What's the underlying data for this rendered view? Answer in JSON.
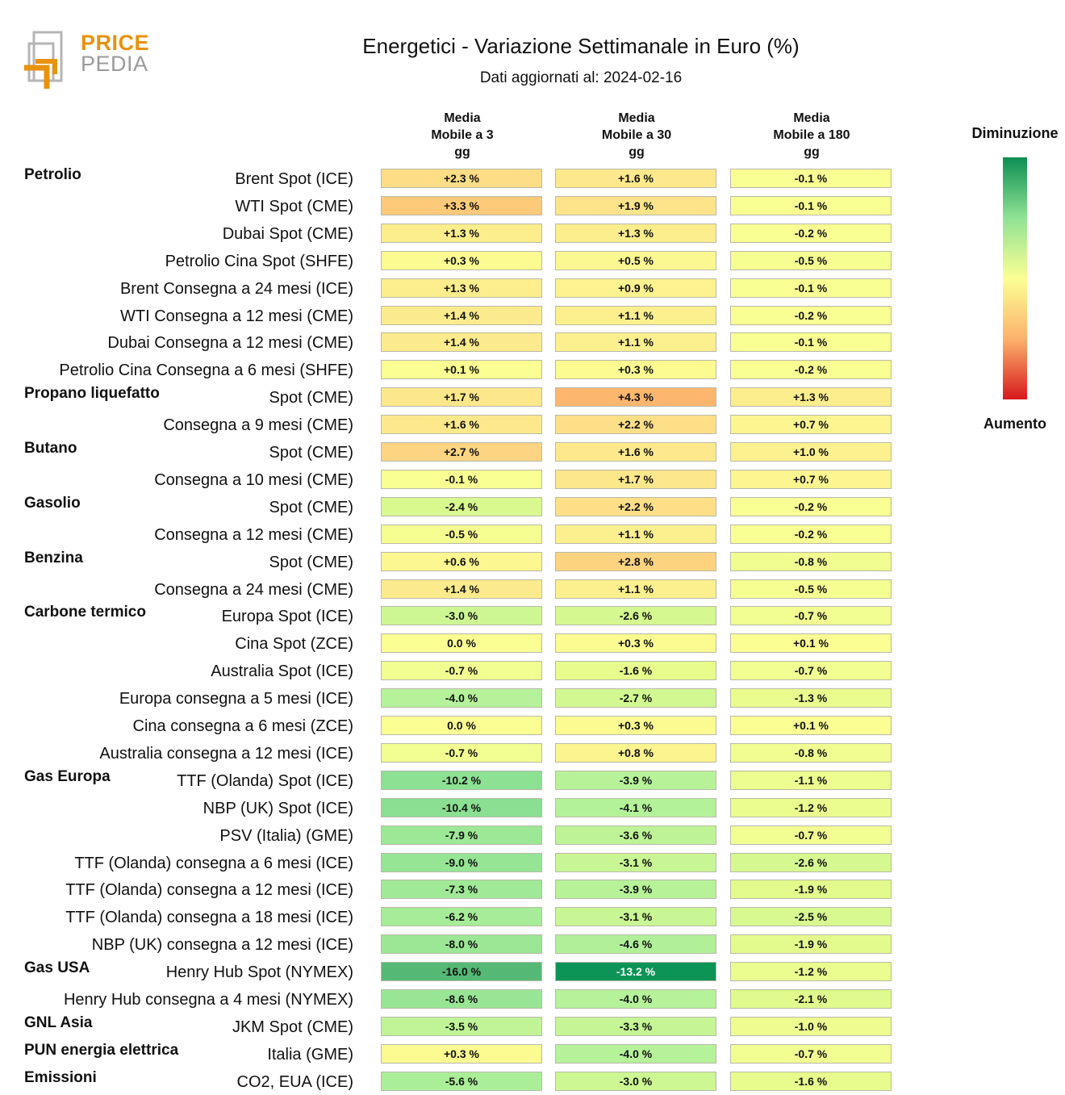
{
  "logo": {
    "line1": "PRICE",
    "line2": "PEDIA"
  },
  "title": "Energetici - Variazione Settimanale in Euro (%)",
  "subtitle": "Dati aggiornati al: 2024-02-16",
  "columns": [
    {
      "lines": [
        "Media",
        "Mobile a 3",
        "gg"
      ]
    },
    {
      "lines": [
        "Media",
        "Mobile a 30",
        "gg"
      ]
    },
    {
      "lines": [
        "Media",
        "Mobile a 180",
        "gg"
      ]
    }
  ],
  "legend": {
    "top": "Diminuzione",
    "bottom": "Aumento",
    "colors": [
      "#0c8f54",
      "#8fe294",
      "#fbff93",
      "#fdb26c",
      "#d7191c"
    ]
  },
  "chart_data": {
    "type": "table",
    "value_suffix": " %",
    "groups": [
      {
        "name": "Petrolio",
        "rows": [
          {
            "label": "Brent Spot (ICE)",
            "values": [
              2.3,
              1.6,
              -0.1
            ]
          },
          {
            "label": "WTI Spot (CME)",
            "values": [
              3.3,
              1.9,
              -0.1
            ]
          },
          {
            "label": "Dubai Spot (CME)",
            "values": [
              1.3,
              1.3,
              -0.2
            ]
          },
          {
            "label": "Petrolio Cina Spot (SHFE)",
            "values": [
              0.3,
              0.5,
              -0.5
            ]
          },
          {
            "label": "Brent Consegna a 24 mesi (ICE)",
            "values": [
              1.3,
              0.9,
              -0.1
            ]
          },
          {
            "label": "WTI Consegna a 12 mesi (CME)",
            "values": [
              1.4,
              1.1,
              -0.2
            ]
          },
          {
            "label": "Dubai Consegna a 12 mesi (CME)",
            "values": [
              1.4,
              1.1,
              -0.1
            ]
          },
          {
            "label": "Petrolio Cina Consegna a 6 mesi (SHFE)",
            "values": [
              0.1,
              0.3,
              -0.2
            ]
          }
        ]
      },
      {
        "name": "Propano liquefatto",
        "rows": [
          {
            "label": "Spot (CME)",
            "values": [
              1.7,
              4.3,
              1.3
            ]
          },
          {
            "label": "Consegna a 9 mesi (CME)",
            "values": [
              1.6,
              2.2,
              0.7
            ]
          }
        ]
      },
      {
        "name": "Butano",
        "rows": [
          {
            "label": "Spot (CME)",
            "values": [
              2.7,
              1.6,
              1.0
            ]
          },
          {
            "label": "Consegna a 10 mesi (CME)",
            "values": [
              -0.1,
              1.7,
              0.7
            ]
          }
        ]
      },
      {
        "name": "Gasolio",
        "rows": [
          {
            "label": "Spot (CME)",
            "values": [
              -2.4,
              2.2,
              -0.2
            ]
          },
          {
            "label": "Consegna a 12 mesi (CME)",
            "values": [
              -0.5,
              1.1,
              -0.2
            ]
          }
        ]
      },
      {
        "name": "Benzina",
        "rows": [
          {
            "label": "Spot (CME)",
            "values": [
              0.6,
              2.8,
              -0.8
            ]
          },
          {
            "label": "Consegna a 24 mesi (CME)",
            "values": [
              1.4,
              1.1,
              -0.5
            ]
          }
        ]
      },
      {
        "name": "Carbone termico",
        "rows": [
          {
            "label": "Europa Spot (ICE)",
            "values": [
              -3.0,
              -2.6,
              -0.7
            ]
          },
          {
            "label": "Cina Spot (ZCE)",
            "values": [
              0.0,
              0.3,
              0.1
            ]
          },
          {
            "label": "Australia Spot (ICE)",
            "values": [
              -0.7,
              -1.6,
              -0.7
            ]
          },
          {
            "label": "Europa consegna a 5 mesi (ICE)",
            "values": [
              -4.0,
              -2.7,
              -1.3
            ]
          },
          {
            "label": "Cina consegna a 6 mesi (ZCE)",
            "values": [
              0.0,
              0.3,
              0.1
            ]
          },
          {
            "label": "Australia consegna a 12 mesi (ICE)",
            "values": [
              -0.7,
              0.8,
              -0.8
            ]
          }
        ]
      },
      {
        "name": "Gas Europa",
        "rows": [
          {
            "label": "TTF (Olanda) Spot (ICE)",
            "values": [
              -10.2,
              -3.9,
              -1.1
            ]
          },
          {
            "label": "NBP (UK) Spot (ICE)",
            "values": [
              -10.4,
              -4.1,
              -1.2
            ]
          },
          {
            "label": "PSV (Italia) (GME)",
            "values": [
              -7.9,
              -3.6,
              -0.7
            ]
          },
          {
            "label": "TTF (Olanda) consegna a 6 mesi (ICE)",
            "values": [
              -9.0,
              -3.1,
              -2.6
            ]
          },
          {
            "label": "TTF (Olanda) consegna a 12 mesi (ICE)",
            "values": [
              -7.3,
              -3.9,
              -1.9
            ]
          },
          {
            "label": "TTF (Olanda) consegna a 18 mesi (ICE)",
            "values": [
              -6.2,
              -3.1,
              -2.5
            ]
          },
          {
            "label": "NBP (UK) consegna a 12 mesi (ICE)",
            "values": [
              -8.0,
              -4.6,
              -1.9
            ]
          }
        ]
      },
      {
        "name": "Gas USA",
        "rows": [
          {
            "label": "Henry Hub Spot (NYMEX)",
            "values": [
              -16.0,
              -13.2,
              -1.2
            ]
          },
          {
            "label": "Henry Hub consegna a 4 mesi (NYMEX)",
            "values": [
              -8.6,
              -4.0,
              -2.1
            ]
          }
        ]
      },
      {
        "name": "GNL Asia",
        "rows": [
          {
            "label": "JKM Spot (CME)",
            "values": [
              -3.5,
              -3.3,
              -1.0
            ]
          }
        ]
      },
      {
        "name": "PUN energia elettrica",
        "rows": [
          {
            "label": "Italia (GME)",
            "values": [
              0.3,
              -4.0,
              -0.7
            ]
          }
        ]
      },
      {
        "name": "Emissioni",
        "rows": [
          {
            "label": "CO2, EUA (ICE)",
            "values": [
              -5.6,
              -3.0,
              -1.6
            ]
          }
        ]
      }
    ]
  }
}
